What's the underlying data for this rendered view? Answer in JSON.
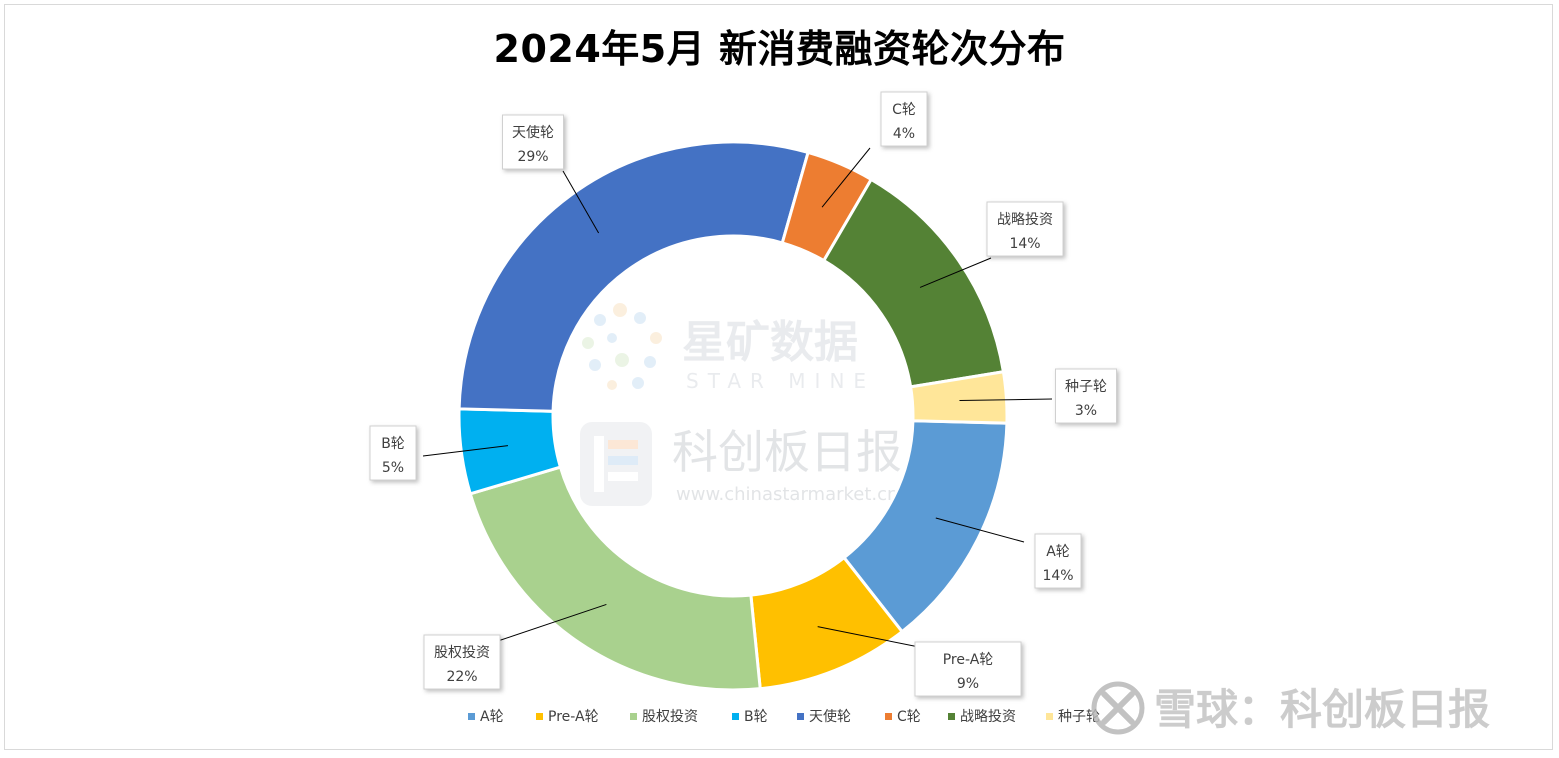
{
  "chart_data": {
    "type": "pie",
    "donut": true,
    "title": "2024年5月 新消费融资轮次分布",
    "categories": [
      "A轮",
      "Pre-A轮",
      "股权投资",
      "B轮",
      "天使轮",
      "C轮",
      "战略投资",
      "种子轮"
    ],
    "values": [
      14,
      9,
      22,
      5,
      29,
      4,
      14,
      3
    ],
    "value_labels": [
      "14%",
      "9%",
      "22%",
      "5%",
      "29%",
      "4%",
      "14%",
      "3%"
    ],
    "colors": [
      "#5B9BD5",
      "#FFC000",
      "#A9D18E",
      "#00B0F0",
      "#4472C4",
      "#ED7D31",
      "#548235",
      "#FFE699"
    ],
    "legend_position": "bottom"
  },
  "watermarks": {
    "brand_cn": "星矿数据",
    "brand_en": "STAR MINE",
    "paper_cn": "科创板日报",
    "url": "www.chinastarmarket.cn",
    "snowball": "雪球：科创板日报"
  }
}
